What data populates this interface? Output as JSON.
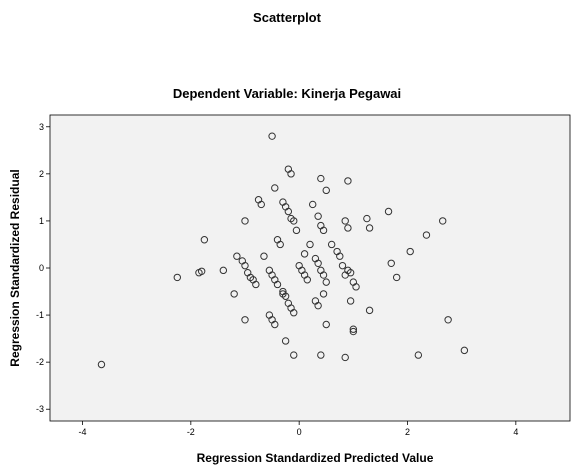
{
  "chart_data": {
    "type": "scatter",
    "title": "Scatterplot",
    "subtitle": "Dependent Variable: Kinerja Pegawai",
    "xlabel": "Regression Standardized Predicted Value",
    "ylabel": "Regression Standardized Residual",
    "xlim": [
      -4.6,
      5.0
    ],
    "ylim": [
      -3.25,
      3.25
    ],
    "xticks": [
      "-4",
      "-2",
      "0",
      "2",
      "4"
    ],
    "yticks": [
      "3",
      "2",
      "1",
      "0",
      "-1",
      "-2",
      "-3"
    ],
    "grid": false,
    "marker": "open-circle",
    "colors": {
      "background": "#f2f2f2",
      "marker": "#333333",
      "axis": "#000000"
    },
    "points": [
      [
        -3.65,
        -2.05
      ],
      [
        -2.25,
        -0.2
      ],
      [
        -1.85,
        -0.1
      ],
      [
        -1.8,
        -0.07
      ],
      [
        -1.75,
        0.6
      ],
      [
        -1.4,
        -0.05
      ],
      [
        -1.2,
        -0.55
      ],
      [
        -1.15,
        0.25
      ],
      [
        -1.05,
        0.15
      ],
      [
        -1.0,
        0.05
      ],
      [
        -0.95,
        -0.1
      ],
      [
        -0.9,
        -0.2
      ],
      [
        -0.85,
        -0.25
      ],
      [
        -0.8,
        -0.35
      ],
      [
        -1.0,
        -1.1
      ],
      [
        -1.0,
        1.0
      ],
      [
        -0.75,
        1.45
      ],
      [
        -0.7,
        1.35
      ],
      [
        -0.65,
        0.25
      ],
      [
        -0.55,
        -0.05
      ],
      [
        -0.5,
        -0.15
      ],
      [
        -0.45,
        -0.25
      ],
      [
        -0.4,
        -0.35
      ],
      [
        -0.55,
        -1.0
      ],
      [
        -0.5,
        -1.1
      ],
      [
        -0.45,
        -1.2
      ],
      [
        -0.5,
        2.8
      ],
      [
        -0.45,
        1.7
      ],
      [
        -0.4,
        0.6
      ],
      [
        -0.35,
        0.5
      ],
      [
        -0.3,
        1.4
      ],
      [
        -0.25,
        1.3
      ],
      [
        -0.2,
        1.2
      ],
      [
        -0.15,
        1.05
      ],
      [
        -0.1,
        1.0
      ],
      [
        -0.3,
        -0.5
      ],
      [
        -0.25,
        -0.6
      ],
      [
        -0.2,
        -0.75
      ],
      [
        -0.15,
        -0.85
      ],
      [
        -0.1,
        -0.95
      ],
      [
        -0.3,
        -0.55
      ],
      [
        -0.25,
        -1.55
      ],
      [
        -0.1,
        -1.85
      ],
      [
        -0.2,
        2.1
      ],
      [
        -0.15,
        2.0
      ],
      [
        -0.05,
        0.8
      ],
      [
        0.0,
        0.05
      ],
      [
        0.05,
        -0.05
      ],
      [
        0.1,
        -0.15
      ],
      [
        0.15,
        -0.25
      ],
      [
        0.1,
        0.3
      ],
      [
        0.2,
        0.5
      ],
      [
        0.25,
        1.35
      ],
      [
        0.35,
        1.1
      ],
      [
        0.4,
        0.9
      ],
      [
        0.45,
        0.8
      ],
      [
        0.3,
        0.2
      ],
      [
        0.35,
        0.1
      ],
      [
        0.4,
        -0.05
      ],
      [
        0.45,
        -0.15
      ],
      [
        0.5,
        -0.3
      ],
      [
        0.3,
        -0.7
      ],
      [
        0.35,
        -0.8
      ],
      [
        0.45,
        -0.55
      ],
      [
        0.5,
        -1.2
      ],
      [
        0.4,
        -1.85
      ],
      [
        0.4,
        1.9
      ],
      [
        0.5,
        1.65
      ],
      [
        0.6,
        0.5
      ],
      [
        0.7,
        0.35
      ],
      [
        0.75,
        0.25
      ],
      [
        0.8,
        0.05
      ],
      [
        0.85,
        -0.15
      ],
      [
        0.9,
        0.85
      ],
      [
        0.85,
        1.0
      ],
      [
        0.9,
        1.85
      ],
      [
        0.9,
        -0.05
      ],
      [
        0.95,
        -0.1
      ],
      [
        1.0,
        -0.3
      ],
      [
        1.05,
        -0.4
      ],
      [
        0.95,
        -0.7
      ],
      [
        1.0,
        -1.3
      ],
      [
        1.0,
        -1.35
      ],
      [
        0.85,
        -1.9
      ],
      [
        1.25,
        1.05
      ],
      [
        1.3,
        0.85
      ],
      [
        1.3,
        -0.9
      ],
      [
        1.65,
        1.2
      ],
      [
        1.7,
        0.1
      ],
      [
        1.8,
        -0.2
      ],
      [
        2.05,
        0.35
      ],
      [
        2.2,
        -1.85
      ],
      [
        2.35,
        0.7
      ],
      [
        2.65,
        1.0
      ],
      [
        2.75,
        -1.1
      ],
      [
        3.05,
        -1.75
      ]
    ]
  }
}
